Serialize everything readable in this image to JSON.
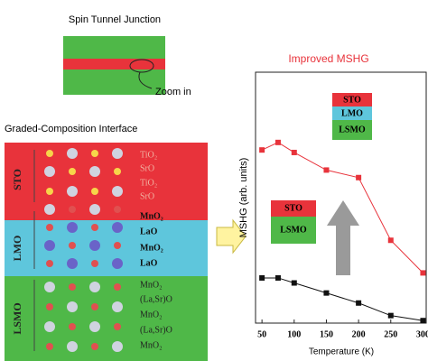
{
  "chart_data": {
    "type": "line",
    "title": "Improved MSHG",
    "x_label": "Temperature (K)",
    "y_label": "MSHG (arb. units)",
    "x": [
      50,
      75,
      100,
      150,
      200,
      250,
      300
    ],
    "series": [
      {
        "color": "#e8333b",
        "values": [
          0.69,
          0.72,
          0.68,
          0.61,
          0.58,
          0.33,
          0.2
        ]
      },
      {
        "color": "#111111",
        "values": [
          0.18,
          0.18,
          0.16,
          0.12,
          0.08,
          0.03,
          0.01
        ]
      }
    ],
    "xlim": [
      40,
      305
    ],
    "ylim": [
      0,
      1
    ],
    "xticks": [
      50,
      100,
      150,
      200,
      250,
      300
    ]
  },
  "diagram": {
    "junction_title": "Spin Tunnel Junction",
    "zoom_label": "Zoom in",
    "interface_title": "Graded-Composition Interface",
    "layers": [
      {
        "name": "STO",
        "labels": [
          "TiO₂",
          "SrO",
          "TiO₂",
          "SrO"
        ]
      },
      {
        "name": "LMO",
        "labels": [
          "MnO₂",
          "LaO",
          "MnO₂",
          "LaO"
        ]
      },
      {
        "name": "LSMO",
        "labels": [
          "MnO₂",
          "(La,Sr)O",
          "MnO₂",
          "(La,Sr)O",
          "MnO₂"
        ]
      }
    ],
    "inset_after": [
      "STO",
      "LMO",
      "LSMO"
    ],
    "inset_before": [
      "STO",
      "LSMO"
    ]
  }
}
